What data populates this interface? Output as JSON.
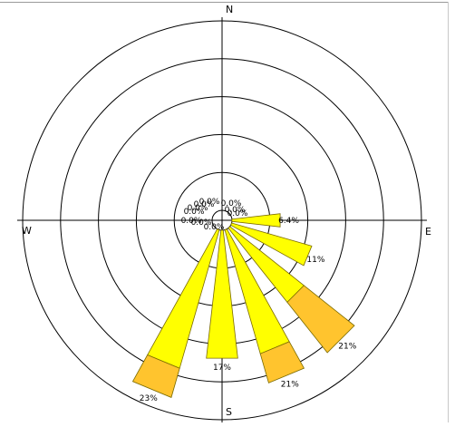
{
  "chart_data": {
    "type": "wind_rose",
    "directions": [
      "N",
      "E",
      "S",
      "W"
    ],
    "units": "percent",
    "rmax": 25,
    "rings": 5,
    "sectors": [
      {
        "bearing": 0,
        "segments": [
          0
        ],
        "label": "0.0%"
      },
      {
        "bearing": 22.5,
        "segments": [
          0
        ],
        "label": "0.0%"
      },
      {
        "bearing": 45,
        "segments": [
          0
        ],
        "label": "0.0%"
      },
      {
        "bearing": 67.5,
        "segments": [
          0
        ],
        "label": "0.0%"
      },
      {
        "bearing": 90,
        "segments": [
          6.4
        ],
        "label": "6.4%"
      },
      {
        "bearing": 112.5,
        "segments": [
          11
        ],
        "label": "11%"
      },
      {
        "bearing": 135,
        "segments": [
          12.5,
          8.5
        ],
        "label": "21%"
      },
      {
        "bearing": 157.5,
        "segments": [
          17,
          4
        ],
        "label": "21%"
      },
      {
        "bearing": 180,
        "segments": [
          17
        ],
        "label": "17%"
      },
      {
        "bearing": 202.5,
        "segments": [
          19,
          4
        ],
        "label": "23%"
      },
      {
        "bearing": 225,
        "segments": [
          0
        ],
        "label": "0.0%"
      },
      {
        "bearing": 247.5,
        "segments": [
          0
        ],
        "label": "0.0%"
      },
      {
        "bearing": 270,
        "segments": [
          0
        ],
        "label": "0.0%"
      },
      {
        "bearing": 292.5,
        "segments": [
          0
        ],
        "label": "0.0%"
      },
      {
        "bearing": 315,
        "segments": [
          0
        ],
        "label": "0.0%"
      },
      {
        "bearing": 337.5,
        "segments": [
          0
        ],
        "label": "0.0%"
      }
    ],
    "colors": {
      "inner": "#ffff00",
      "outer": "#ffc42e",
      "outline": "#7a6a00",
      "ring": "#000000"
    }
  }
}
